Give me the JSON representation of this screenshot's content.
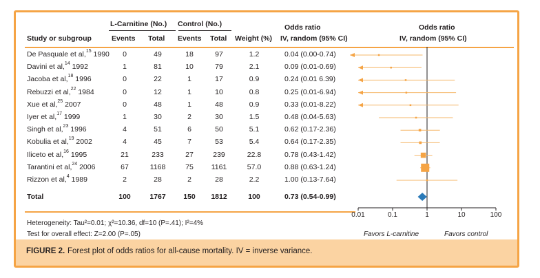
{
  "headers": {
    "study": "Study or subgroup",
    "group1": "L-Carnitine (No.)",
    "group2": "Control (No.)",
    "events": "Events",
    "total": "Total",
    "weight": "Weight (%)",
    "or1_line1": "Odds ratio",
    "or1_line2": "IV, random (95% CI)",
    "or2_line1": "Odds ratio",
    "or2_line2": "IV, random (95% CI)"
  },
  "rows": [
    {
      "study": "De Pasquale et al,",
      "ref": "15",
      "year": " 1990",
      "ev1": "0",
      "tot1": "49",
      "ev2": "18",
      "tot2": "97",
      "weight": "1.2",
      "ci": "0.04 (0.00-0.74)"
    },
    {
      "study": "Davini et al,",
      "ref": "14",
      "year": " 1992",
      "ev1": "1",
      "tot1": "81",
      "ev2": "10",
      "tot2": "79",
      "weight": "2.1",
      "ci": "0.09 (0.01-0.69)"
    },
    {
      "study": "Jacoba et al,",
      "ref": "18",
      "year": " 1996",
      "ev1": "0",
      "tot1": "22",
      "ev2": "1",
      "tot2": "17",
      "weight": "0.9",
      "ci": "0.24 (0.01 6.39)"
    },
    {
      "study": "Rebuzzi et al,",
      "ref": "22",
      "year": " 1984",
      "ev1": "0",
      "tot1": "12",
      "ev2": "1",
      "tot2": "10",
      "weight": "0.8",
      "ci": "0.25 (0.01-6.94)"
    },
    {
      "study": "Xue et al,",
      "ref": "25",
      "year": " 2007",
      "ev1": "0",
      "tot1": "48",
      "ev2": "1",
      "tot2": "48",
      "weight": "0.9",
      "ci": "0.33 (0.01-8.22)"
    },
    {
      "study": "Iyer et al,",
      "ref": "17",
      "year": " 1999",
      "ev1": "1",
      "tot1": "30",
      "ev2": "2",
      "tot2": "30",
      "weight": "1.5",
      "ci": "0.48 (0.04-5.63)"
    },
    {
      "study": "Singh et al,",
      "ref": "23",
      "year": " 1996",
      "ev1": "4",
      "tot1": "51",
      "ev2": "6",
      "tot2": "50",
      "weight": "5.1",
      "ci": "0.62 (0.17-2.36)"
    },
    {
      "study": "Kobulia et al,",
      "ref": "19",
      "year": " 2002",
      "ev1": "4",
      "tot1": "45",
      "ev2": "7",
      "tot2": "53",
      "weight": "5.4",
      "ci": "0.64 (0.17-2.35)"
    },
    {
      "study": "Iliceto et al,",
      "ref": "16",
      "year": " 1995",
      "ev1": "21",
      "tot1": "233",
      "ev2": "27",
      "tot2": "239",
      "weight": "22.8",
      "ci": "0.78 (0.43-1.42)"
    },
    {
      "study": "Tarantini et al,",
      "ref": "24",
      "year": " 2006",
      "ev1": "67",
      "tot1": "1168",
      "ev2": "75",
      "tot2": "1161",
      "weight": "57.0",
      "ci": "0.88 (0.63-1.24)"
    },
    {
      "study": "Rizzon et al,",
      "ref": "4",
      "year": " 1989",
      "ev1": "2",
      "tot1": "28",
      "ev2": "2",
      "tot2": "28",
      "weight": "2.2",
      "ci": "1.00 (0.13-7.64)"
    }
  ],
  "total": {
    "label": "Total",
    "ev1": "100",
    "tot1": "1767",
    "ev2": "150",
    "tot2": "1812",
    "weight": "100",
    "ci": "0.73 (0.54-0.99)"
  },
  "footer": {
    "heterogeneity": "Heterogeneity: Tau²=0.01; χ²=10.36, df=10 (P=.41); I²=4%",
    "overall": "Test for overall effect: Z=2.00 (P=.05)"
  },
  "caption": {
    "label": "FIGURE 2.",
    "text": "Forest plot of odds ratios for all-cause mortality. IV = inverse variance."
  },
  "colors": {
    "accent": "#f5a445",
    "ci_line": "#f5b76a",
    "square": "#f5a445",
    "diamond": "#2a7ab8",
    "caption_bg": "#fbd3a2"
  },
  "chart_data": {
    "type": "forest",
    "title": "Odds ratio IV, random (95% CI)",
    "xscale": "log",
    "xlim": [
      0.01,
      100
    ],
    "xticks": [
      0.01,
      0.1,
      1,
      10,
      100
    ],
    "xtick_labels": [
      "0.01",
      "0.1",
      "1",
      "10",
      "100"
    ],
    "reference_line": 1,
    "left_label": "Favors L-carnitine",
    "right_label": "Favors control",
    "studies": [
      {
        "name": "De Pasquale 1990",
        "or": 0.04,
        "lo": 0.0,
        "hi": 0.74,
        "weight": 1.2
      },
      {
        "name": "Davini 1992",
        "or": 0.09,
        "lo": 0.01,
        "hi": 0.69,
        "weight": 2.1
      },
      {
        "name": "Jacoba 1996",
        "or": 0.24,
        "lo": 0.01,
        "hi": 6.39,
        "weight": 0.9
      },
      {
        "name": "Rebuzzi 1984",
        "or": 0.25,
        "lo": 0.01,
        "hi": 6.94,
        "weight": 0.8
      },
      {
        "name": "Xue 2007",
        "or": 0.33,
        "lo": 0.01,
        "hi": 8.22,
        "weight": 0.9
      },
      {
        "name": "Iyer 1999",
        "or": 0.48,
        "lo": 0.04,
        "hi": 5.63,
        "weight": 1.5
      },
      {
        "name": "Singh 1996",
        "or": 0.62,
        "lo": 0.17,
        "hi": 2.36,
        "weight": 5.1
      },
      {
        "name": "Kobulia 2002",
        "or": 0.64,
        "lo": 0.17,
        "hi": 2.35,
        "weight": 5.4
      },
      {
        "name": "Iliceto 1995",
        "or": 0.78,
        "lo": 0.43,
        "hi": 1.42,
        "weight": 22.8
      },
      {
        "name": "Tarantini 2006",
        "or": 0.88,
        "lo": 0.63,
        "hi": 1.24,
        "weight": 57.0
      },
      {
        "name": "Rizzon 1989",
        "or": 1.0,
        "lo": 0.13,
        "hi": 7.64,
        "weight": 2.2
      }
    ],
    "pooled": {
      "or": 0.73,
      "lo": 0.54,
      "hi": 0.99
    }
  }
}
